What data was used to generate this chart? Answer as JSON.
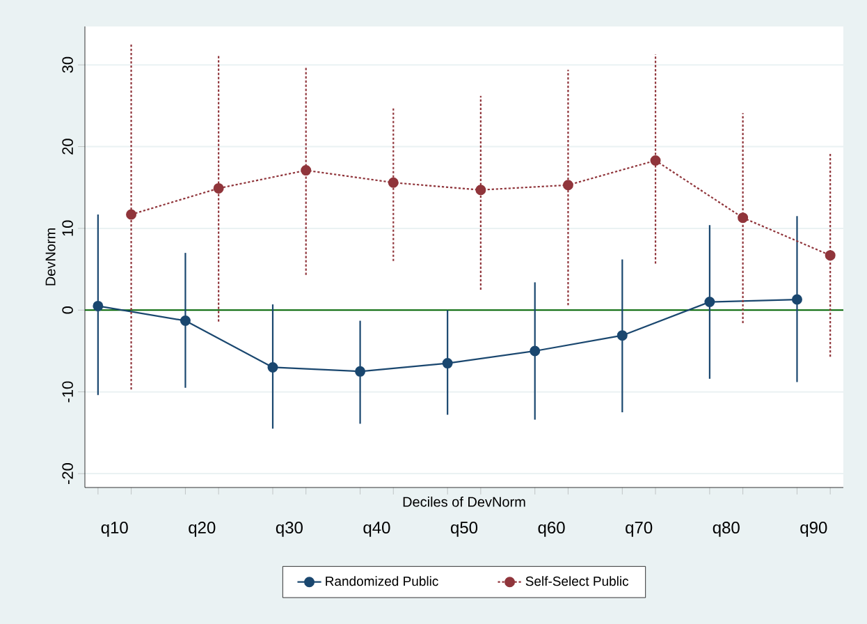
{
  "chart_data": {
    "type": "line",
    "xlabel": "Deciles of DevNorm",
    "ylabel": "DevNorm",
    "categories": [
      "q10",
      "q20",
      "q30",
      "q40",
      "q50",
      "q60",
      "q70",
      "q80",
      "q90"
    ],
    "series": [
      {
        "name": "Randomized Public",
        "color": "#1a476f",
        "line_style": "solid",
        "values": [
          0.5,
          -1.3,
          -7.0,
          -7.5,
          -6.5,
          -5.0,
          -3.1,
          1.0,
          1.3
        ],
        "errors": [
          [
            -10.4,
            11.7
          ],
          [
            -9.5,
            7.0
          ],
          [
            -14.5,
            0.7
          ],
          [
            -13.9,
            -1.3
          ],
          [
            -12.8,
            0.0
          ],
          [
            -13.4,
            3.4
          ],
          [
            -12.5,
            6.2
          ],
          [
            -8.4,
            10.4
          ],
          [
            -8.8,
            11.5
          ]
        ]
      },
      {
        "name": "Self-Select Public",
        "color": "#90353b",
        "line_style": "dashed",
        "values": [
          11.7,
          14.9,
          17.1,
          15.6,
          14.7,
          15.3,
          18.3,
          11.3,
          6.7
        ],
        "errors": [
          [
            -9.7,
            32.7
          ],
          [
            -1.4,
            31.1
          ],
          [
            4.3,
            29.8
          ],
          [
            6.0,
            24.9
          ],
          [
            2.5,
            26.2
          ],
          [
            0.6,
            29.4
          ],
          [
            5.7,
            31.3
          ],
          [
            -1.6,
            24.1
          ],
          [
            -5.7,
            19.2
          ]
        ]
      }
    ],
    "ylim": [
      -21.7,
      34.7
    ],
    "yticks": [
      -20,
      -10,
      0,
      10,
      20,
      30
    ],
    "ref_lines": [
      {
        "axis": "y",
        "value": 0,
        "color": "#006400"
      }
    ],
    "grid": "y",
    "legend": "bottom",
    "marker": "circle"
  }
}
